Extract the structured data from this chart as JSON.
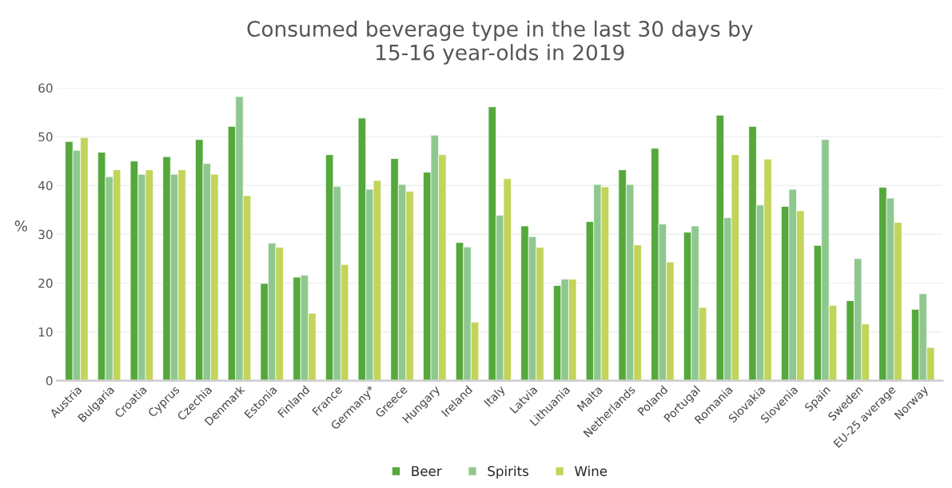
{
  "chart_data": {
    "type": "bar",
    "title": "Consumed beverage type in the last 30 days by\n15-16 year-olds in 2019",
    "ylabel": "%",
    "categories": [
      "Austria",
      "Bulgaria",
      "Croatia",
      "Cyprus",
      "Czechia",
      "Denmark",
      "Estonia",
      "Finland",
      "France",
      "Germany*",
      "Greece",
      "Hungary",
      "Ireland",
      "Italy",
      "Latvia",
      "Lithuania",
      "Malta",
      "Netherlands",
      "Poland",
      "Portugal",
      "Romania",
      "Slovakia",
      "Slovenia",
      "Spain",
      "Sweden",
      "EU-25 average",
      "Norway"
    ],
    "series": [
      {
        "name": "Beer",
        "color": "#55a83b",
        "values": [
          49,
          46.8,
          45,
          45.9,
          49.4,
          52.1,
          19.9,
          21.2,
          46.3,
          53.8,
          45.5,
          42.7,
          28.3,
          56.1,
          31.7,
          19.5,
          32.6,
          43.2,
          47.6,
          30.4,
          54.4,
          52.1,
          35.7,
          27.7,
          16.4,
          39.6,
          14.6
        ]
      },
      {
        "name": "Spirits",
        "color": "#8fc88f",
        "values": [
          47.2,
          41.8,
          42.3,
          42.3,
          44.5,
          58.2,
          28.2,
          21.6,
          39.8,
          39.2,
          40.2,
          50.3,
          27.4,
          33.9,
          29.5,
          20.8,
          40.2,
          40.2,
          32.1,
          31.7,
          33.4,
          36,
          39.2,
          49.4,
          25,
          37.4,
          17.8
        ]
      },
      {
        "name": "Wine",
        "color": "#c2d45a",
        "values": [
          49.8,
          43.2,
          43.2,
          43.2,
          42.3,
          37.9,
          27.3,
          13.8,
          23.8,
          41,
          38.8,
          46.3,
          12,
          41.4,
          27.3,
          20.8,
          39.7,
          27.8,
          24.3,
          15,
          46.3,
          45.4,
          34.8,
          15.4,
          11.6,
          32.4,
          6.8
        ]
      }
    ],
    "ylim": [
      0,
      60
    ],
    "yticks": [
      0,
      10,
      20,
      30,
      40,
      50,
      60
    ],
    "grid": "y",
    "legend": "bottom"
  }
}
